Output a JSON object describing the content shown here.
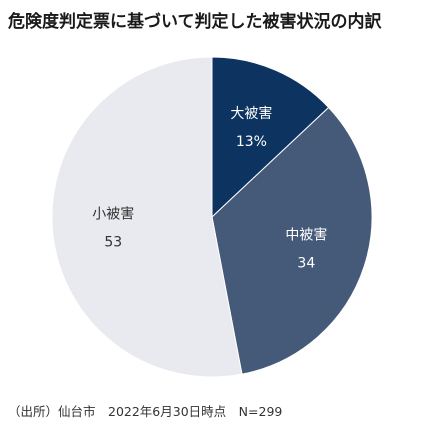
{
  "chart_data": {
    "type": "pie",
    "title": "危険度判定票に基づいて判定した被害状況の内訳",
    "start_angle_deg": 0,
    "direction": "clockwise",
    "slices": [
      {
        "label": "大被害",
        "value_label": "13%",
        "value": 13,
        "color": "#0d3361",
        "text_color": "#ffffff"
      },
      {
        "label": "中被害",
        "value_label": "34",
        "value": 34,
        "color": "#455a78",
        "text_color": "#ffffff"
      },
      {
        "label": "小被害",
        "value_label": "53",
        "value": 53,
        "color": "#e8eaf0",
        "text_color": "#333333"
      }
    ]
  },
  "source_note": "（出所）仙台市　2022年6月30日時点　N=299"
}
